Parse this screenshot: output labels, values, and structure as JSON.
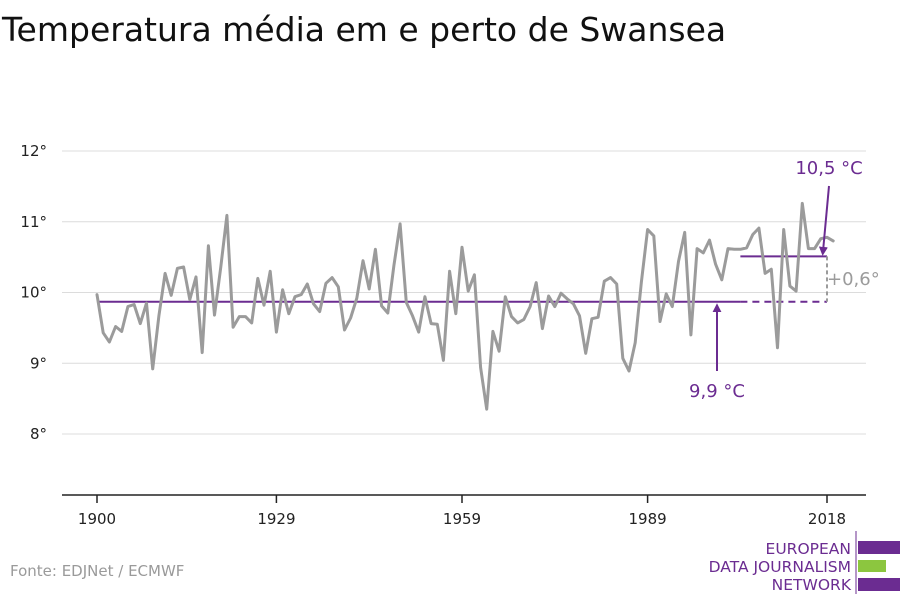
{
  "title": "Temperatura média em e perto de Swansea",
  "source": "Fonte: EDJNet / ECMWF",
  "logo": {
    "line1": "EUROPEAN",
    "line2": "DATA JOURNALISM",
    "line3": "NETWORK"
  },
  "colors": {
    "series": "#9b9b9b",
    "baseline": "#6b2c91",
    "recent": "#6b2c91",
    "diff": "#9b9b9b",
    "logo_purple": "#6b2c91",
    "logo_green": "#8cc63f"
  },
  "chart_data": {
    "type": "line",
    "title": "Temperatura média em e perto de Swansea",
    "xlabel": "",
    "ylabel": "",
    "xlim": [
      1900,
      2019
    ],
    "ylim": [
      7.1,
      12.3
    ],
    "grid": true,
    "x_ticks": [
      1900,
      1929,
      1959,
      1989,
      2018
    ],
    "x_tick_labels": [
      "1900",
      "1929",
      "1959",
      "1989",
      "2018"
    ],
    "y_ticks": [
      8,
      9,
      10,
      11,
      12
    ],
    "y_tick_labels": [
      "8°",
      "9°",
      "10°",
      "11°",
      "12°"
    ],
    "series": [
      {
        "x": [
          1900,
          1901,
          1902,
          1903,
          1904,
          1905,
          1906,
          1907,
          1908,
          1909,
          1910,
          1911,
          1912,
          1913,
          1914,
          1915,
          1916,
          1917,
          1918,
          1919,
          1920,
          1921,
          1922,
          1923,
          1924,
          1925,
          1926,
          1927,
          1928,
          1929,
          1930,
          1931,
          1932,
          1933,
          1934,
          1935,
          1936,
          1937,
          1938,
          1939,
          1940,
          1941,
          1942,
          1943,
          1944,
          1945,
          1946,
          1947,
          1948,
          1949,
          1950,
          1951,
          1952,
          1953,
          1954,
          1955,
          1956,
          1957,
          1958,
          1959,
          1960,
          1961,
          1962,
          1963,
          1964,
          1965,
          1966,
          1967,
          1968,
          1969,
          1970,
          1971,
          1972,
          1973,
          1974,
          1975,
          1976,
          1977,
          1978,
          1979,
          1980,
          1981,
          1982,
          1983,
          1984,
          1985,
          1986,
          1987,
          1988,
          1989,
          1990,
          1991,
          1992,
          1993,
          1994,
          1995,
          1996,
          1997,
          1998,
          1999,
          2000,
          2001,
          2002,
          2003,
          2004,
          2005,
          2006,
          2007,
          2008,
          2009,
          2010,
          2011,
          2012,
          2013,
          2014,
          2015,
          2016,
          2017,
          2018,
          2019
        ],
        "values": [
          9.97,
          9.43,
          9.3,
          9.52,
          9.45,
          9.8,
          9.83,
          9.56,
          9.85,
          8.92,
          9.67,
          10.27,
          9.96,
          10.34,
          10.36,
          9.9,
          10.22,
          9.15,
          10.66,
          9.68,
          10.35,
          11.09,
          9.51,
          9.66,
          9.66,
          9.57,
          10.2,
          9.82,
          10.3,
          9.44,
          10.04,
          9.7,
          9.94,
          9.97,
          10.12,
          9.84,
          9.73,
          10.13,
          10.21,
          10.08,
          9.47,
          9.64,
          9.92,
          10.45,
          10.05,
          10.61,
          9.81,
          9.71,
          10.38,
          10.97,
          9.86,
          9.67,
          9.44,
          9.94,
          9.56,
          9.55,
          9.04,
          10.3,
          9.7,
          10.64,
          10.02,
          10.25,
          8.94,
          8.35,
          9.45,
          9.17,
          9.94,
          9.66,
          9.57,
          9.62,
          9.8,
          10.14,
          9.49,
          9.95,
          9.8,
          9.99,
          9.91,
          9.84,
          9.67,
          9.14,
          9.63,
          9.65,
          10.16,
          10.21,
          10.12,
          9.07,
          8.89,
          9.29,
          10.15,
          10.89,
          10.8,
          9.59,
          9.98,
          9.8,
          10.44,
          10.85,
          9.4,
          10.62,
          10.56,
          10.74,
          10.4,
          10.18,
          10.62,
          10.61,
          10.61,
          10.63,
          10.82,
          10.91,
          10.27,
          10.33,
          9.22,
          10.89,
          10.09,
          10.02,
          11.26,
          10.62,
          10.62,
          10.76,
          10.78,
          10.73
        ]
      }
    ],
    "baseline": {
      "value": 9.87,
      "from": 1900,
      "to": 2018,
      "solid_to": 2004,
      "label": "9,9 °C"
    },
    "recent": {
      "value": 10.51,
      "from": 2004,
      "to": 2018,
      "label": "10,5 °C"
    },
    "difference_label": "+0,6°"
  }
}
